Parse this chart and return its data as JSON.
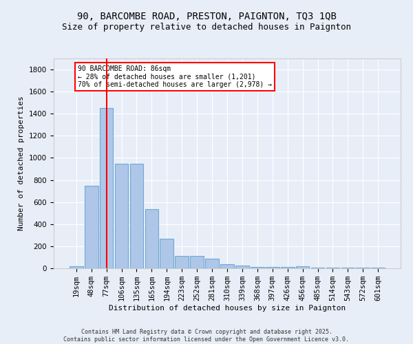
{
  "title1": "90, BARCOMBE ROAD, PRESTON, PAIGNTON, TQ3 1QB",
  "title2": "Size of property relative to detached houses in Paignton",
  "xlabel": "Distribution of detached houses by size in Paignton",
  "ylabel": "Number of detached properties",
  "categories": [
    "19sqm",
    "48sqm",
    "77sqm",
    "106sqm",
    "135sqm",
    "165sqm",
    "194sqm",
    "223sqm",
    "252sqm",
    "281sqm",
    "310sqm",
    "339sqm",
    "368sqm",
    "397sqm",
    "426sqm",
    "456sqm",
    "485sqm",
    "514sqm",
    "543sqm",
    "572sqm",
    "601sqm"
  ],
  "values": [
    20,
    750,
    1450,
    950,
    950,
    535,
    270,
    110,
    110,
    90,
    40,
    25,
    10,
    10,
    10,
    20,
    5,
    5,
    5,
    5,
    5
  ],
  "bar_color": "#aec6e8",
  "bar_edge_color": "#6fa8d4",
  "red_line_index": 2,
  "annotation_text": "90 BARCOMBE ROAD: 86sqm\n← 28% of detached houses are smaller (1,201)\n70% of semi-detached houses are larger (2,978) →",
  "annotation_box_color": "white",
  "annotation_box_edge_color": "red",
  "ylim": [
    0,
    1900
  ],
  "background_color": "#e8eef8",
  "plot_bg_color": "#e8eef8",
  "footnote1": "Contains HM Land Registry data © Crown copyright and database right 2025.",
  "footnote2": "Contains public sector information licensed under the Open Government Licence v3.0.",
  "title_fontsize": 10,
  "subtitle_fontsize": 9,
  "axis_label_fontsize": 8,
  "tick_fontsize": 7.5
}
